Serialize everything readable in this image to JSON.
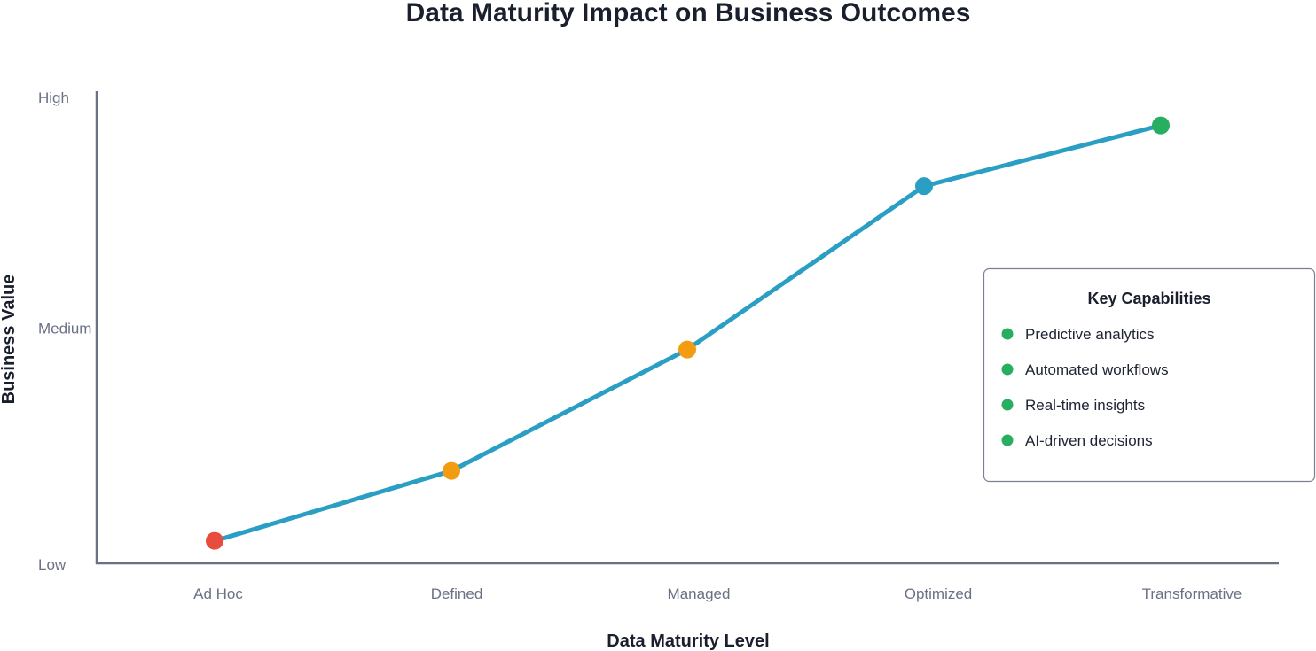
{
  "chart_data": {
    "type": "line",
    "title": "Data Maturity Impact on Business Outcomes",
    "xlabel": "Data Maturity Level",
    "ylabel": "Business Value",
    "categories": [
      "Ad Hoc",
      "Defined",
      "Managed",
      "Optimized",
      "Transformative"
    ],
    "values": [
      5,
      20,
      46,
      81,
      94
    ],
    "ylim": [
      0,
      100
    ],
    "y_ticks": [
      {
        "label": "High",
        "value": 100
      },
      {
        "label": "Medium",
        "value": 50
      },
      {
        "label": "Low",
        "value": 0
      }
    ],
    "point_colors": [
      "#e74c3c",
      "#f39c12",
      "#f39c12",
      "#2a9fc3",
      "#27ae60"
    ],
    "line_color": "#2a9fc3",
    "grid": false,
    "legend": {
      "placement": "right",
      "title": "Key Capabilities",
      "bullet_color": "#27ae60",
      "items": [
        "Predictive analytics",
        "Automated workflows",
        "Real-time insights",
        "AI-driven decisions"
      ]
    }
  }
}
